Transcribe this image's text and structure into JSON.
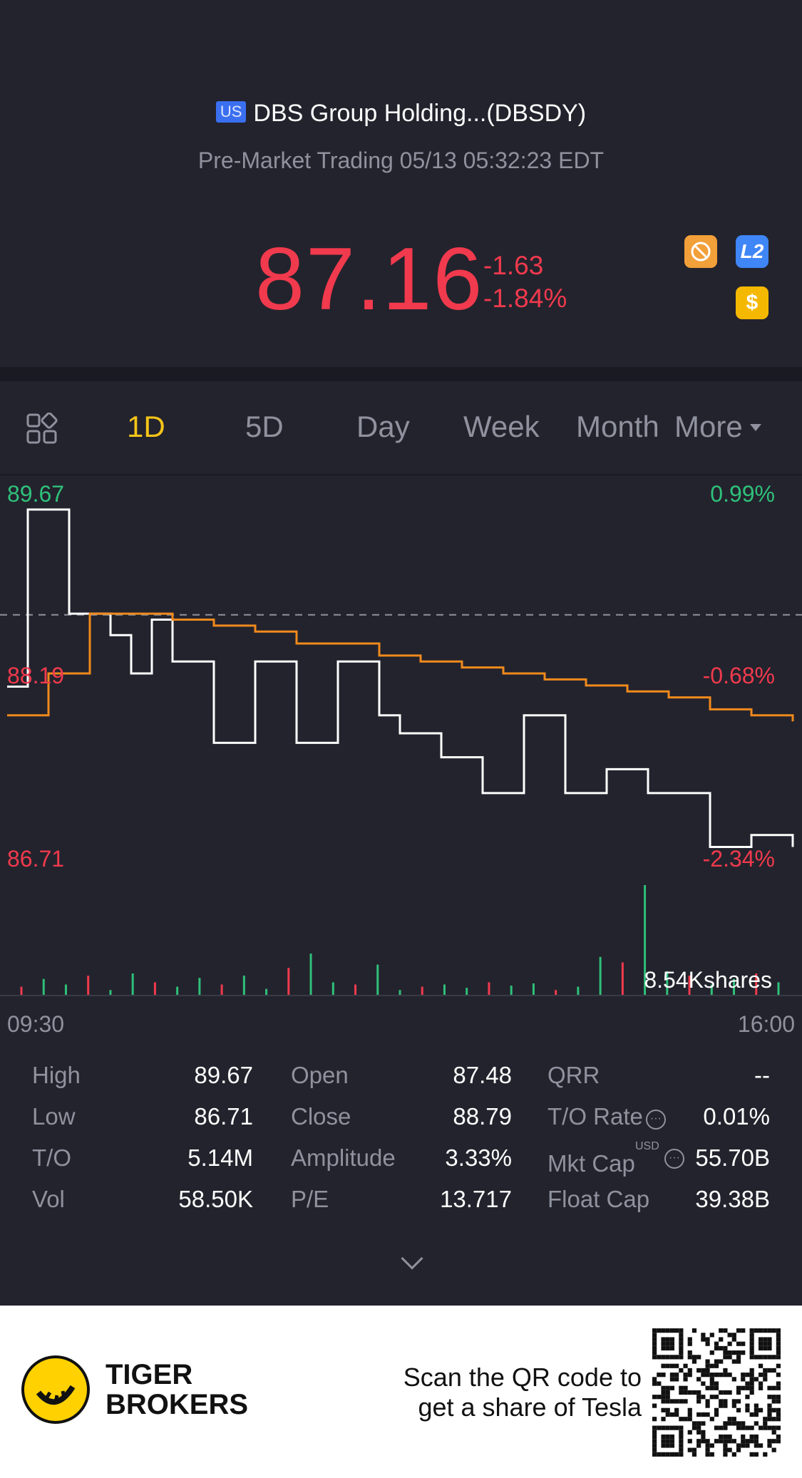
{
  "header": {
    "badge": "US",
    "title": "DBS Group Holding...(DBSDY)",
    "subtitle": "Pre-Market Trading 05/13 05:32:23 EDT",
    "price": "87.16",
    "change": "-1.63",
    "change_pct": "-1.84%",
    "icons": [
      "no-limit-icon",
      "level2-icon",
      "dollar-icon"
    ],
    "l2_label": "L2",
    "dollar_label": "$"
  },
  "tabs": [
    {
      "label": "1D",
      "active": true
    },
    {
      "label": "5D",
      "active": false
    },
    {
      "label": "Day",
      "active": false
    },
    {
      "label": "Week",
      "active": false
    },
    {
      "label": "Month",
      "active": false
    },
    {
      "label": "More",
      "active": false
    }
  ],
  "chart_data": {
    "type": "line",
    "y_high": "89.67",
    "y_mid": "88.19",
    "y_low": "86.71",
    "pct_high": "0.99%",
    "pct_mid": "-0.68%",
    "pct_low": "-2.34%",
    "x_start": "09:30",
    "x_end": "16:00",
    "volume_label": "8.54Kshares",
    "ylim": [
      86.71,
      89.67
    ],
    "prev_close": 88.79,
    "series": [
      {
        "values": [
          88.19,
          89.67,
          89.67,
          88.8,
          88.8,
          88.62,
          88.3,
          88.75,
          88.4,
          88.4,
          87.72,
          87.72,
          88.4,
          88.4,
          87.72,
          87.72,
          88.4,
          88.4,
          87.95,
          87.8,
          87.8,
          87.6,
          87.6,
          87.3,
          87.3,
          87.95,
          87.95,
          87.3,
          87.3,
          87.5,
          87.5,
          87.3,
          87.3,
          87.3,
          86.85,
          86.85,
          86.95,
          86.95,
          86.85
        ]
      },
      {
        "values": [
          87.95,
          88.3,
          88.8,
          88.8,
          88.75,
          88.7,
          88.65,
          88.55,
          88.55,
          88.45,
          88.4,
          88.35,
          88.3,
          88.25,
          88.2,
          88.15,
          88.1,
          88.0,
          87.95,
          87.9
        ]
      }
    ],
    "volume": [
      0.08,
      0.15,
      0.1,
      0.18,
      0.05,
      0.2,
      0.12,
      0.08,
      0.16,
      0.1,
      0.18,
      0.06,
      0.25,
      0.38,
      0.12,
      0.1,
      0.28,
      0.05,
      0.08,
      0.1,
      0.07,
      0.12,
      0.09,
      0.11,
      0.05,
      0.08,
      0.35,
      0.3,
      1.0,
      0.22,
      0.18,
      0.1,
      0.15,
      0.2,
      0.12
    ]
  },
  "stats": {
    "high_label": "High",
    "high": "89.67",
    "low_label": "Low",
    "low": "86.71",
    "to_label": "T/O",
    "to": "5.14M",
    "vol_label": "Vol",
    "vol": "58.50K",
    "open_label": "Open",
    "open": "87.48",
    "close_label": "Close",
    "close": "88.79",
    "amp_label": "Amplitude",
    "amp": "3.33%",
    "pe_label": "P/E",
    "pe": "13.717",
    "qrr_label": "QRR",
    "qrr": "--",
    "torate_label": "T/O Rate",
    "torate": "0.01%",
    "mktcap_label": "Mkt Cap",
    "mktcap": "55.70B",
    "mktcap_unit": "USD",
    "floatcap_label": "Float Cap",
    "floatcap": "39.38B"
  },
  "footer": {
    "brand_line1": "TIGER",
    "brand_line2": "BROKERS",
    "promo_line1": "Scan the QR code to",
    "promo_line2": "get a share of Tesla"
  },
  "colors": {
    "background": "#23232d",
    "down": "#f13a4d",
    "up": "#2fc07a",
    "active_tab": "#f5c518",
    "avg_line": "#f08a1c"
  }
}
